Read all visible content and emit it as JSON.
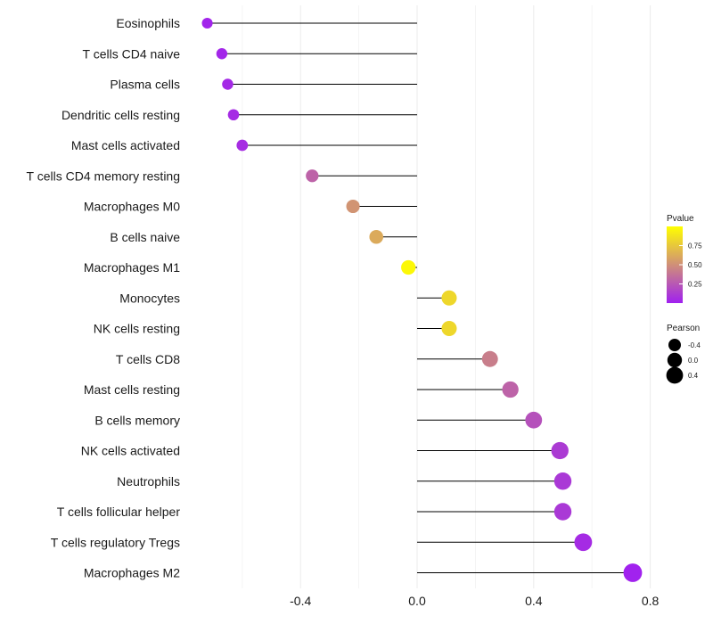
{
  "chart_data": {
    "type": "lollipop",
    "title": "",
    "xlabel": "",
    "ylabel": "",
    "xlim": [
      -0.63,
      0.82
    ],
    "x_ticks": [
      -0.4,
      0.0,
      0.4,
      0.8
    ],
    "x_tick_labels": [
      "-0.4",
      "0.0",
      "0.4",
      "0.8"
    ],
    "minor_gridlines": [
      -0.6,
      -0.2,
      0.2,
      0.6
    ],
    "categories": [
      "Eosinophils",
      "T cells CD4 naive",
      "Plasma cells",
      "Dendritic cells resting",
      "Mast cells activated",
      "T cells CD4 memory resting",
      "Macrophages M0",
      "B cells naive",
      "Macrophages M1",
      "Monocytes",
      "NK cells resting",
      "T cells CD8",
      "Mast cells resting",
      "B cells memory",
      "NK cells activated",
      "Neutrophils",
      "T cells follicular helper",
      "T cells regulatory  Tregs",
      "Macrophages M2"
    ],
    "pearson": [
      -0.72,
      -0.67,
      -0.65,
      -0.63,
      -0.6,
      -0.36,
      -0.22,
      -0.14,
      -0.03,
      0.11,
      0.11,
      0.25,
      0.32,
      0.4,
      0.49,
      0.5,
      0.5,
      0.57,
      0.74
    ],
    "pvalue": [
      0.02,
      0.03,
      0.04,
      0.05,
      0.06,
      0.3,
      0.52,
      0.62,
      0.97,
      0.82,
      0.82,
      0.42,
      0.3,
      0.22,
      0.12,
      0.11,
      0.11,
      0.05,
      0.01
    ],
    "color_legend": {
      "title": "Pvalue",
      "ticks": [
        0.25,
        0.5,
        0.75
      ],
      "tick_labels": [
        "0.25",
        "0.50",
        "0.75"
      ],
      "low_color": "#a020f0",
      "high_color": "#ffff00"
    },
    "size_legend": {
      "title": "Pearson",
      "values": [
        -0.4,
        0.0,
        0.4
      ],
      "labels": [
        "-0.4",
        "0.0",
        "0.4"
      ]
    }
  }
}
